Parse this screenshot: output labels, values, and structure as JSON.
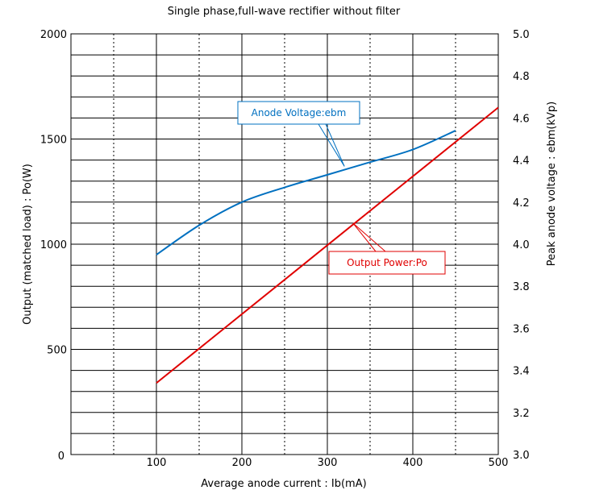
{
  "chart_data": {
    "type": "line",
    "title": "Single phase,full-wave rectifier without filter",
    "xlabel": "Average anode current : Ib(mA)",
    "ylabel_left": "Output (matched load) : Po(W)",
    "ylabel_right": "Peak anode voltage : ebm(kVp)",
    "xlim": [
      0,
      500
    ],
    "ylim_left": [
      0,
      2000
    ],
    "ylim_right": [
      3.0,
      5.0
    ],
    "x_ticks": [
      "100",
      "200",
      "300",
      "400",
      "500"
    ],
    "y_left_ticks": [
      "0",
      "500",
      "1000",
      "1500",
      "2000"
    ],
    "y_right_ticks": [
      "3.0",
      "3.2",
      "3.4",
      "3.6",
      "3.8",
      "4.0",
      "4.2",
      "4.4",
      "4.6",
      "4.8",
      "5.0"
    ],
    "grid": true,
    "series": [
      {
        "name": "Anode Voltage:ebm",
        "axis": "right",
        "color": "#0070c0",
        "x": [
          100,
          150,
          200,
          250,
          300,
          350,
          400,
          450
        ],
        "y": [
          3.95,
          4.09,
          4.2,
          4.27,
          4.33,
          4.39,
          4.45,
          4.54
        ]
      },
      {
        "name": "Output Power:Po",
        "axis": "left",
        "color": "#e00000",
        "x": [
          100,
          500
        ],
        "y": [
          340,
          1650
        ]
      }
    ],
    "annotations": [
      {
        "text": "Anode Voltage:ebm",
        "series": 0,
        "x": 320,
        "y": 4.37
      },
      {
        "text": "Output Power:Po",
        "series": 1,
        "x": 330,
        "y": 1100
      }
    ]
  }
}
